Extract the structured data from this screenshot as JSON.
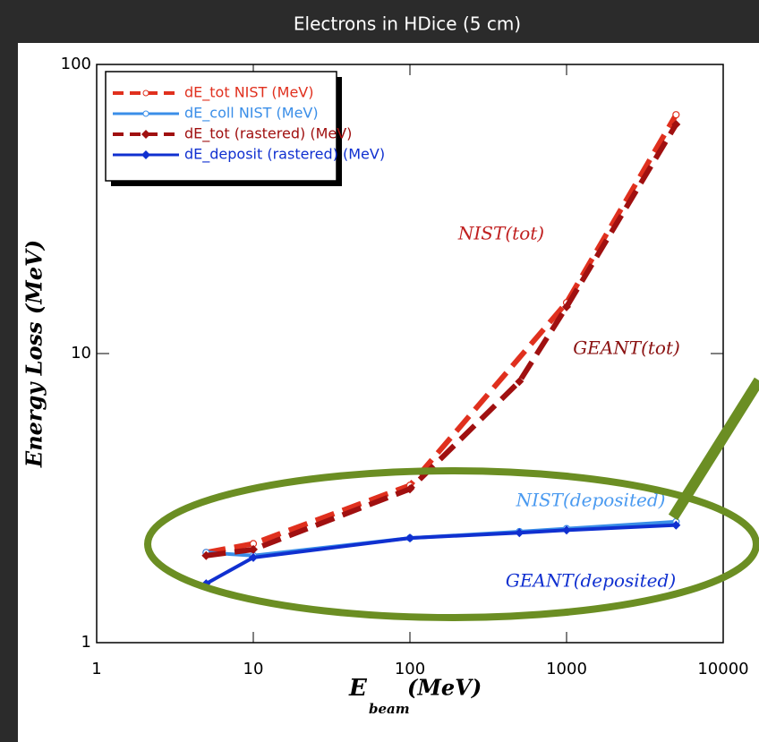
{
  "chart_data": {
    "type": "line",
    "title": "Electrons in HDice (5 cm)",
    "y_label": "Energy Loss (MeV)",
    "x_label": {
      "main": "E",
      "subscript": "beam",
      "unit": "(MeV)"
    },
    "log_x": true,
    "log_y": true,
    "xlim": [
      1,
      10000
    ],
    "ylim": [
      1,
      100
    ],
    "xticks": [
      1,
      10,
      100,
      1000,
      10000
    ],
    "yticks": [
      1,
      10,
      100
    ],
    "legend": "top-left",
    "series": [
      {
        "name": "dE_tot NIST (MeV)",
        "color": "#e0301e",
        "dash": true,
        "marker": "circle",
        "x": [
          5,
          10,
          100,
          1000,
          5000
        ],
        "values": [
          2.05,
          2.2,
          3.5,
          15,
          67
        ]
      },
      {
        "name": "dE_coll NIST (MeV)",
        "color": "#3a8ee8",
        "dash": false,
        "marker": "circle",
        "x": [
          5,
          10,
          100,
          500,
          1000,
          5000
        ],
        "values": [
          2.05,
          2.0,
          2.3,
          2.42,
          2.48,
          2.62
        ]
      },
      {
        "name": "dE_tot (rastered) (MeV)",
        "color": "#a01010",
        "dash": true,
        "marker": "diamond",
        "x": [
          5,
          10,
          100,
          500,
          1000,
          5000
        ],
        "values": [
          2.0,
          2.1,
          3.4,
          8,
          14.5,
          62
        ]
      },
      {
        "name": "dE_deposit (rastered) (MeV)",
        "color": "#1030d0",
        "dash": false,
        "marker": "diamond",
        "x": [
          5,
          10,
          100,
          500,
          1000,
          5000
        ],
        "values": [
          1.6,
          1.97,
          2.3,
          2.4,
          2.45,
          2.55
        ]
      }
    ],
    "annotations": [
      {
        "text": "NIST(tot)",
        "color": "#c02020"
      },
      {
        "text": "GEANT(tot)",
        "color": "#8a1010"
      },
      {
        "text": "NIST(deposited)",
        "color": "#4a9af0"
      },
      {
        "text": "GEANT(deposited)",
        "color": "#1030d0"
      }
    ]
  }
}
